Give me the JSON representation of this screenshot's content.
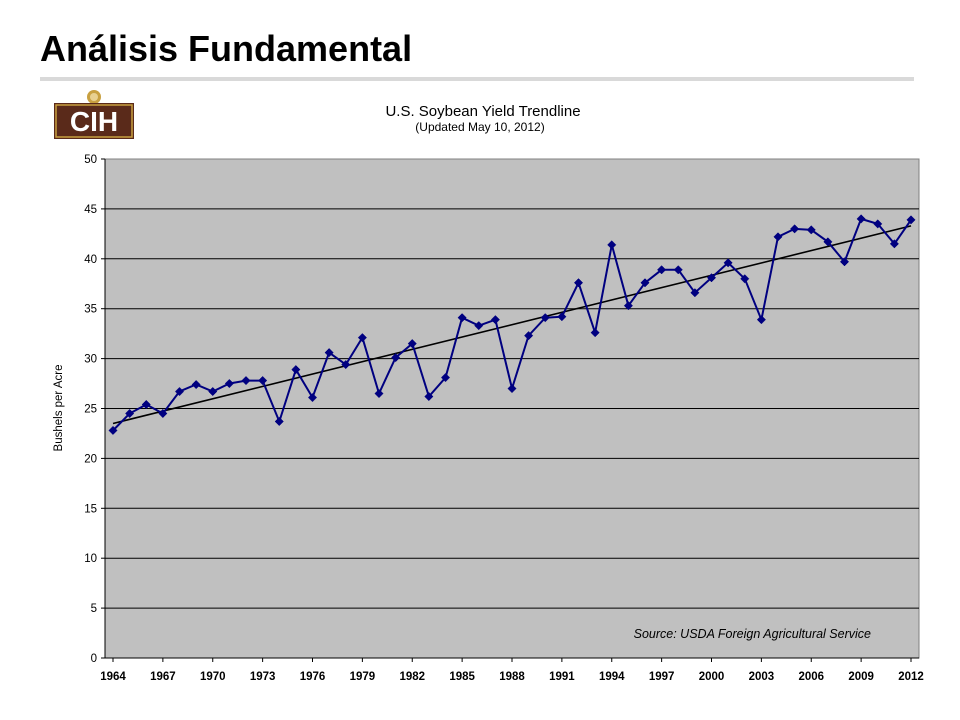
{
  "slide": {
    "title": "Análisis Fundamental"
  },
  "logo": {
    "text": "CIH",
    "colors": {
      "primary": "#5a2a1a",
      "accent": "#c8a040"
    }
  },
  "chart_data": {
    "type": "line",
    "title": "U.S. Soybean Yield Trendline",
    "subtitle": "(Updated May 10, 2012)",
    "xlabel": "",
    "ylabel": "Bushels per Acre",
    "ylim": [
      0,
      50
    ],
    "xlim": [
      1964,
      2012
    ],
    "yticks": [
      0,
      5,
      10,
      15,
      20,
      25,
      30,
      35,
      40,
      45,
      50
    ],
    "xticks": [
      1964,
      1967,
      1970,
      1973,
      1976,
      1979,
      1982,
      1985,
      1988,
      1991,
      1994,
      1997,
      2000,
      2003,
      2006,
      2009,
      2012
    ],
    "grid": true,
    "annotation": "Source: USDA Foreign Agricultural Service",
    "colors": {
      "plot_bg": "#c0c0c0",
      "series": "#000080",
      "trend": "#000000",
      "grid": "#000000"
    },
    "series": [
      {
        "x": [
          1964,
          1965,
          1966,
          1967,
          1968,
          1969,
          1970,
          1971,
          1972,
          1973,
          1974,
          1975,
          1976,
          1977,
          1978,
          1979,
          1980,
          1981,
          1982,
          1983,
          1984,
          1985,
          1986,
          1987,
          1988,
          1989,
          1990,
          1991,
          1992,
          1993,
          1994,
          1995,
          1996,
          1997,
          1998,
          1999,
          2000,
          2001,
          2002,
          2003,
          2004,
          2005,
          2006,
          2007,
          2008,
          2009,
          2010,
          2011,
          2012
        ],
        "values": [
          22.8,
          24.5,
          25.4,
          24.5,
          26.7,
          27.4,
          26.7,
          27.5,
          27.8,
          27.8,
          23.7,
          28.9,
          26.1,
          30.6,
          29.4,
          32.1,
          26.5,
          30.1,
          31.5,
          26.2,
          28.1,
          34.1,
          33.3,
          33.9,
          27.0,
          32.3,
          34.1,
          34.2,
          37.6,
          32.6,
          41.4,
          35.3,
          37.6,
          38.9,
          38.9,
          36.6,
          38.1,
          39.6,
          38.0,
          33.9,
          42.2,
          43.0,
          42.9,
          41.7,
          39.7,
          44.0,
          43.5,
          41.5,
          43.9
        ]
      },
      {
        "x": [
          1964,
          2012
        ],
        "values": [
          23.5,
          43.3
        ]
      }
    ]
  }
}
